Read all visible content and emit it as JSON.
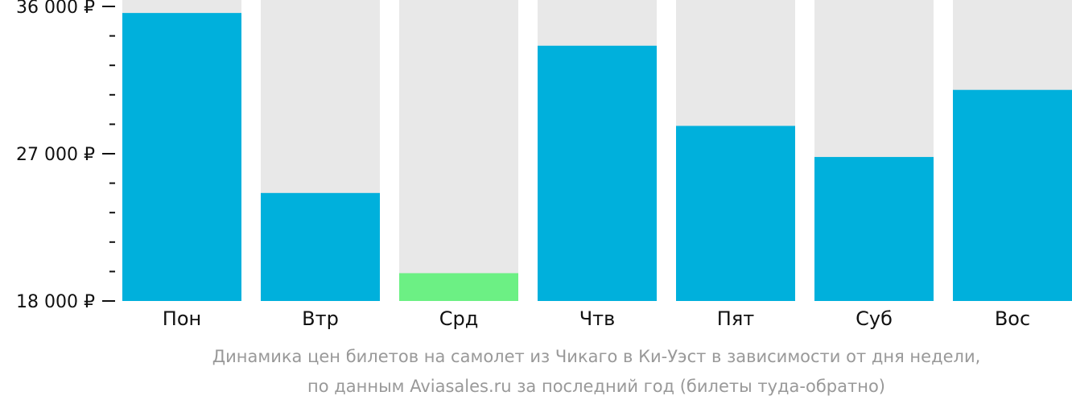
{
  "chart_data": {
    "type": "bar",
    "categories": [
      "Пон",
      "Втр",
      "Срд",
      "Чтв",
      "Пят",
      "Суб",
      "Вос"
    ],
    "values": [
      35600,
      24600,
      19700,
      33600,
      28700,
      26800,
      30900
    ],
    "ylim": [
      18000,
      36000
    ],
    "y_ticks": [
      {
        "value": 18000,
        "label": "18 000 ₽"
      },
      {
        "value": 27000,
        "label": "27 000 ₽"
      },
      {
        "value": 36000,
        "label": "36 000 ₽"
      }
    ],
    "y_minor_ticks": [
      19800,
      21600,
      23400,
      25200,
      28800,
      30600,
      32400,
      34200
    ],
    "colors": {
      "bar": "#00b0dc",
      "lowest_bar": "#6cf084",
      "background_column": "#e8e8e8",
      "text": "#111111",
      "caption": "#999999"
    },
    "lowest_index": 2,
    "grid": false,
    "legend": "none"
  },
  "caption": {
    "line1": "Динамика цен билетов на самолет из Чикаго в Ки-Уэст в зависимости от дня недели,",
    "line2": "по данным Aviasales.ru за последний год (билеты туда-обратно)"
  }
}
